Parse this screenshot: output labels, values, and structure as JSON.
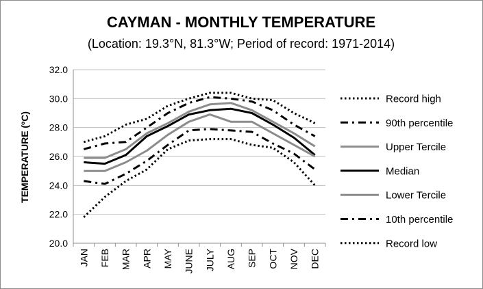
{
  "chart_data": {
    "type": "line",
    "title": "CAYMAN - MONTHLY TEMPERATURE",
    "subtitle": "(Location: 19.3°N, 81.3°W; Period of record: 1971-2014)",
    "ylabel": "TEMPERATURE (ºC)",
    "xlabel": "",
    "categories": [
      "JAN",
      "FEB",
      "MAR",
      "APR",
      "MAY",
      "JUNE",
      "JULY",
      "AUG",
      "SEP",
      "OCT",
      "NOV",
      "DEC"
    ],
    "ylim": [
      20.0,
      32.0
    ],
    "yticks": [
      "20.0",
      "22.0",
      "24.0",
      "26.0",
      "28.0",
      "30.0",
      "32.0"
    ],
    "grid": true,
    "legend_position": "right",
    "series": [
      {
        "name": "Record high",
        "color": "#000000",
        "style": "dotted",
        "values": [
          27.0,
          27.4,
          28.2,
          28.6,
          29.5,
          30.0,
          30.4,
          30.4,
          30.0,
          29.9,
          29.0,
          28.3
        ]
      },
      {
        "name": "90th percentile",
        "color": "#000000",
        "style": "dashdot",
        "values": [
          26.5,
          26.9,
          27.0,
          28.0,
          29.0,
          29.7,
          30.1,
          30.0,
          29.8,
          29.2,
          28.2,
          27.4
        ]
      },
      {
        "name": "Upper Tercile",
        "color": "#8c8c8c",
        "style": "solid",
        "values": [
          25.9,
          25.9,
          26.5,
          27.6,
          28.3,
          29.1,
          29.6,
          29.7,
          29.2,
          28.4,
          27.6,
          26.7
        ]
      },
      {
        "name": "Median",
        "color": "#000000",
        "style": "solid",
        "values": [
          25.6,
          25.5,
          26.1,
          27.4,
          28.1,
          28.9,
          29.2,
          29.3,
          29.0,
          28.2,
          27.3,
          26.1
        ]
      },
      {
        "name": "Lower Tercile",
        "color": "#8c8c8c",
        "style": "solid",
        "values": [
          25.0,
          25.0,
          25.6,
          26.4,
          27.5,
          28.4,
          28.9,
          28.4,
          28.4,
          27.6,
          26.8,
          26.0
        ]
      },
      {
        "name": "10th percentile",
        "color": "#000000",
        "style": "dashdot",
        "values": [
          24.3,
          24.1,
          24.8,
          25.7,
          26.8,
          27.8,
          27.9,
          27.8,
          27.7,
          26.9,
          26.2,
          25.1
        ]
      },
      {
        "name": "Record low",
        "color": "#000000",
        "style": "dotted",
        "values": [
          21.8,
          23.2,
          24.3,
          25.1,
          26.5,
          27.1,
          27.2,
          27.2,
          26.8,
          26.6,
          25.6,
          24.0
        ]
      }
    ]
  }
}
